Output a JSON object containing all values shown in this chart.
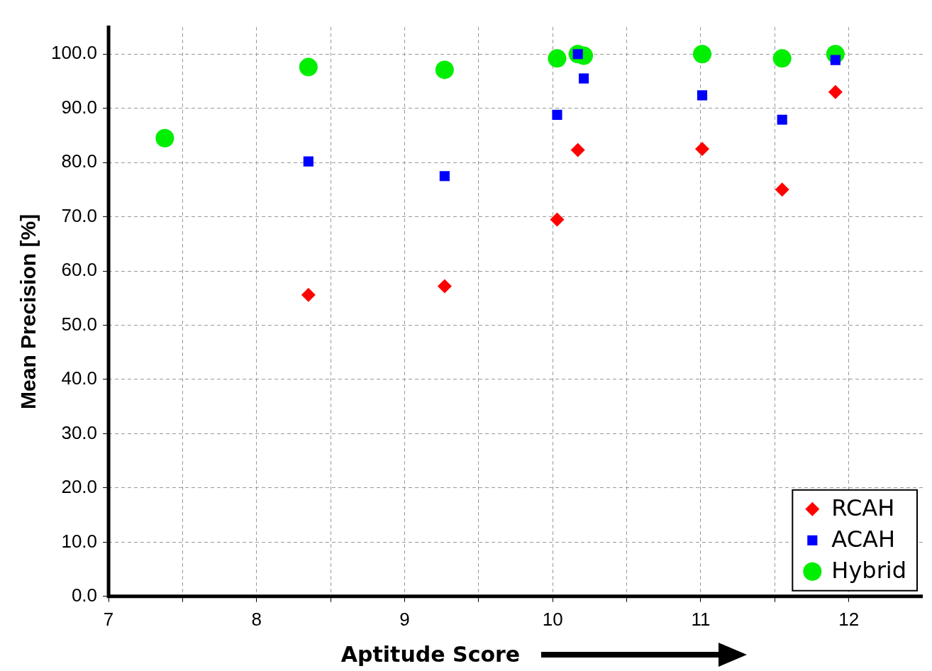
{
  "chart_data": {
    "type": "scatter",
    "xlabel": "Aptitude Score",
    "ylabel": "Mean Precision [%]",
    "xlim": [
      7,
      12.5
    ],
    "xticks": [
      7,
      {
        "value": 7.5,
        "label": null
      },
      8,
      {
        "value": 8.5,
        "label": null
      },
      9,
      {
        "value": 9.5,
        "label": null
      },
      10,
      {
        "value": 10.5,
        "label": null
      },
      11,
      {
        "value": 11.5,
        "label": null
      },
      12
    ],
    "ylim": [
      0,
      105
    ],
    "yticks": [
      {
        "value": 0,
        "label": "0.0"
      },
      {
        "value": 10,
        "label": "10.0"
      },
      {
        "value": 20,
        "label": "20.0"
      },
      {
        "value": 30,
        "label": "30.0"
      },
      {
        "value": 40,
        "label": "40.0"
      },
      {
        "value": 50,
        "label": "50.0"
      },
      {
        "value": 60,
        "label": "60.0"
      },
      {
        "value": 70,
        "label": "70.0"
      },
      {
        "value": 80,
        "label": "80.0"
      },
      {
        "value": 90,
        "label": "90.0"
      },
      {
        "value": 100,
        "label": "100.0"
      }
    ],
    "grid": true,
    "legend": "bottom right",
    "series": [
      {
        "name": "RCAH",
        "color": "#ff0000",
        "marker": "diamond",
        "x": [
          8.35,
          9.27,
          10.03,
          10.17,
          11.01,
          11.55,
          11.91
        ],
        "values": [
          55.6,
          57.2,
          69.5,
          82.3,
          82.5,
          75.0,
          93.0
        ]
      },
      {
        "name": "ACAH",
        "color": "#0000ff",
        "marker": "square",
        "x": [
          8.35,
          9.27,
          10.03,
          10.17,
          10.21,
          11.01,
          11.55,
          11.91
        ],
        "values": [
          80.2,
          77.5,
          88.8,
          100.0,
          95.5,
          92.4,
          87.9,
          98.9
        ]
      },
      {
        "name": "Hybrid",
        "color": "#00ee00",
        "marker": "circle",
        "x": [
          7.38,
          8.35,
          9.27,
          10.03,
          10.17,
          10.21,
          11.01,
          11.55,
          11.91
        ],
        "values": [
          84.5,
          97.6,
          97.1,
          99.2,
          100.0,
          99.7,
          100.0,
          99.2,
          100.0
        ]
      }
    ]
  }
}
